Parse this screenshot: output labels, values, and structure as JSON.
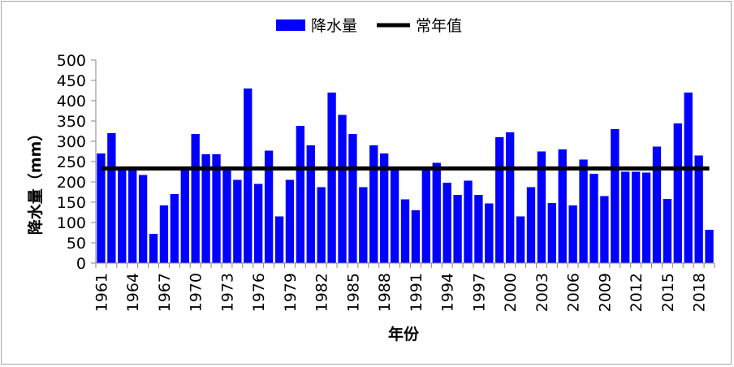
{
  "chart_data": {
    "type": "bar",
    "xlabel": "年份",
    "ylabel": "降水量（mm）",
    "ylim": [
      0,
      500
    ],
    "ytick_step": 50,
    "grid": false,
    "legend_position": "top-center",
    "x": [
      1961,
      1962,
      1963,
      1964,
      1965,
      1966,
      1967,
      1968,
      1969,
      1970,
      1971,
      1972,
      1973,
      1974,
      1975,
      1976,
      1977,
      1978,
      1979,
      1980,
      1981,
      1982,
      1983,
      1984,
      1985,
      1986,
      1987,
      1988,
      1989,
      1990,
      1991,
      1992,
      1993,
      1994,
      1995,
      1996,
      1997,
      1998,
      1999,
      2000,
      2001,
      2002,
      2003,
      2004,
      2005,
      2006,
      2007,
      2008,
      2009,
      2010,
      2011,
      2012,
      2013,
      2014,
      2015,
      2016,
      2017,
      2018,
      2019
    ],
    "x_tick_labels": [
      "1961",
      "1964",
      "1967",
      "1970",
      "1973",
      "1976",
      "1979",
      "1982",
      "1985",
      "1988",
      "1991",
      "1994",
      "1997",
      "2000",
      "2003",
      "2006",
      "2009",
      "2012",
      "2015",
      "2018"
    ],
    "series": [
      {
        "name": "降水量",
        "kind": "bar",
        "color": "#0000ff",
        "values": [
          270,
          320,
          235,
          235,
          217,
          72,
          142,
          170,
          235,
          318,
          268,
          268,
          230,
          205,
          430,
          195,
          277,
          115,
          205,
          338,
          290,
          187,
          420,
          365,
          318,
          187,
          290,
          270,
          232,
          157,
          130,
          230,
          247,
          198,
          168,
          203,
          168,
          147,
          310,
          322,
          115,
          187,
          275,
          148,
          280,
          142,
          255,
          220,
          165,
          330,
          225,
          225,
          223,
          287,
          158,
          344,
          420,
          265,
          82
        ]
      },
      {
        "name": "常年值",
        "kind": "line",
        "color": "#000000",
        "value": 233
      }
    ]
  }
}
